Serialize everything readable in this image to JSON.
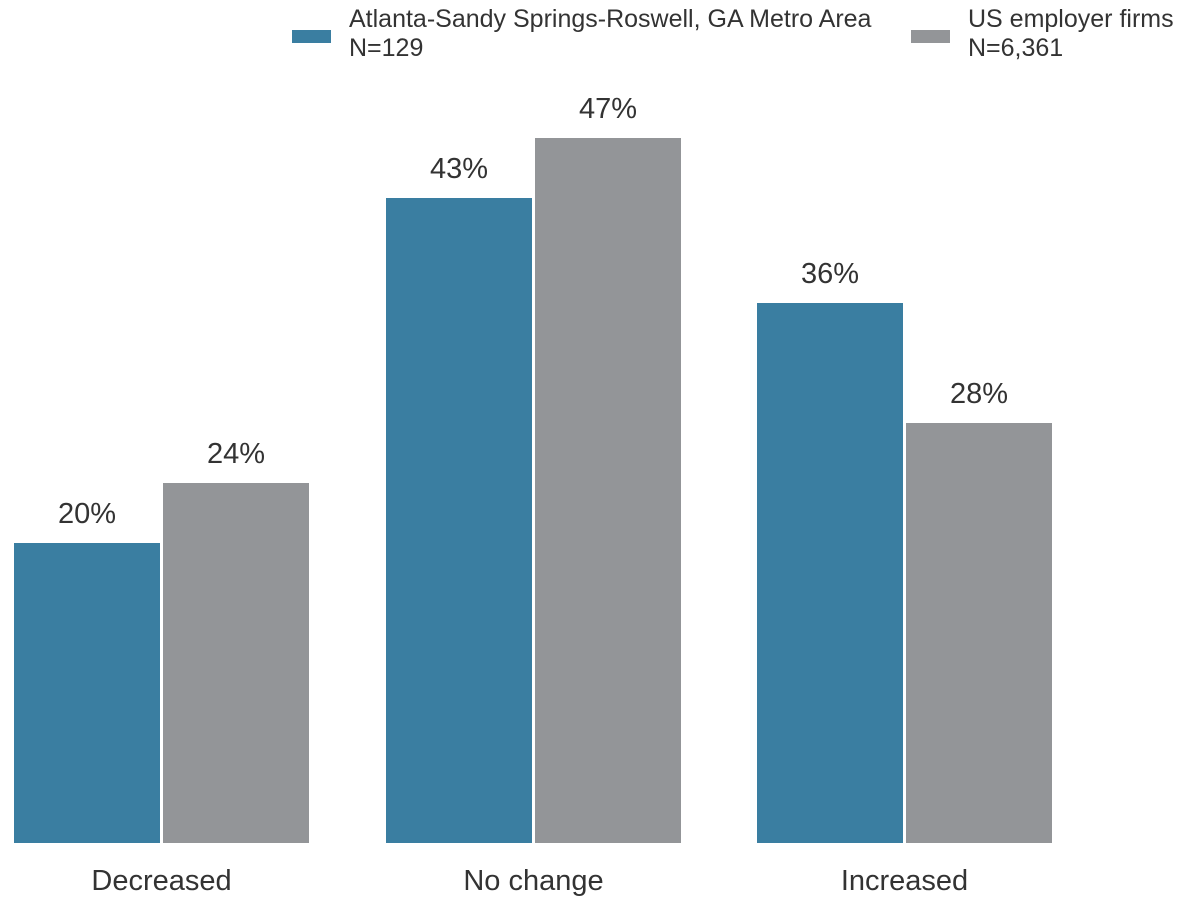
{
  "chart_data": {
    "type": "bar",
    "categories": [
      "Decreased",
      "No change",
      "Increased"
    ],
    "ylim": [
      0,
      50
    ],
    "grid": false,
    "legend_placement": "top-right",
    "series": [
      {
        "name": "Atlanta-Sandy Springs-Roswell, GA Metro Area",
        "note": "N=129",
        "color": "#3a7ea1",
        "values": [
          20,
          43,
          36
        ]
      },
      {
        "name": "US employer firms",
        "note": "N=6,361",
        "color": "#939598",
        "values": [
          24,
          47,
          28
        ]
      }
    ],
    "value_suffix": "%"
  }
}
